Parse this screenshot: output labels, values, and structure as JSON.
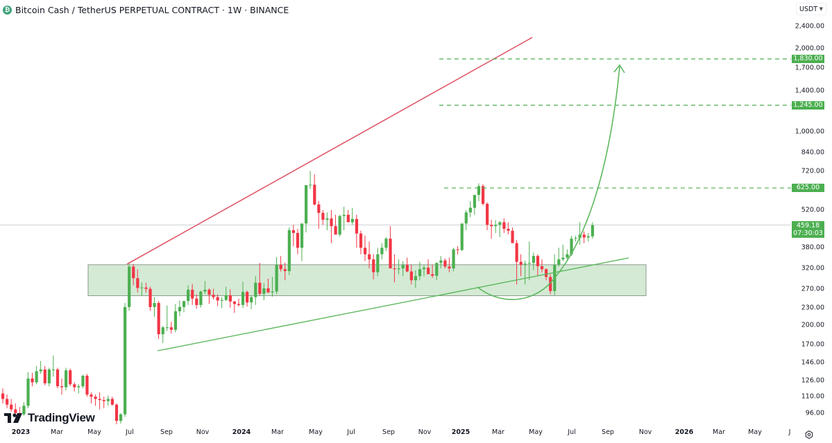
{
  "header": {
    "title": "Bitcoin Cash / TetherUS PERPETUAL CONTRACT · 1W · BINANCE",
    "symbol_icon": "bitcoin-cash-icon"
  },
  "price_axis": {
    "currency_button": "USDT",
    "currency_icon": "chevron-down-icon",
    "ticks": [
      "2,400.00",
      "2,000.00",
      "1,700.00",
      "1,400.00",
      "1,000.00",
      "840.00",
      "720.00",
      "520.00",
      "380.00",
      "320.00",
      "270.00",
      "230.00",
      "200.00",
      "170.00",
      "146.00",
      "126.00",
      "110.00",
      "96.00"
    ],
    "labels": [
      {
        "value": "1,830.00",
        "color": "#4caf50"
      },
      {
        "value": "1,245.00",
        "color": "#4caf50"
      },
      {
        "value": "625.00",
        "color": "#4caf50"
      },
      {
        "value": "459.18",
        "countdown": "07:30:03",
        "color": "#4caf50"
      }
    ]
  },
  "time_axis": {
    "ticks": [
      {
        "label": "2023",
        "year": true
      },
      {
        "label": "Mar"
      },
      {
        "label": "May"
      },
      {
        "label": "Jul"
      },
      {
        "label": "Sep"
      },
      {
        "label": "Nov"
      },
      {
        "label": "2024",
        "year": true
      },
      {
        "label": "Mar"
      },
      {
        "label": "May"
      },
      {
        "label": "Jul"
      },
      {
        "label": "Sep"
      },
      {
        "label": "Nov"
      },
      {
        "label": "2025",
        "year": true
      },
      {
        "label": "Mar"
      },
      {
        "label": "May"
      },
      {
        "label": "Jul"
      },
      {
        "label": "Sep"
      },
      {
        "label": "Nov"
      },
      {
        "label": "2026",
        "year": true
      },
      {
        "label": "Mar"
      },
      {
        "label": "May"
      },
      {
        "label": "J"
      }
    ],
    "settings_icon": "gear-icon"
  },
  "branding": {
    "logo_text": "TradingView",
    "logo_icon": "tradingview-logo-icon"
  },
  "colors": {
    "up": "#4caf50",
    "down": "#f23645",
    "resistance_line": "#e0596a",
    "support_line": "#5cb85c",
    "zone_fill": "#d4ead5",
    "zone_border": "#8a9a8c",
    "target_line": "#4caf50",
    "price_line": "#b2b5be"
  },
  "chart_data": {
    "type": "candlestick",
    "title": "Bitcoin Cash / TetherUS PERPETUAL CONTRACT · 1W · BINANCE",
    "xlabel": "",
    "ylabel": "USDT",
    "y_scale": "log",
    "ylim": [
      90,
      2600
    ],
    "x_range": [
      "2023-01",
      "2026-07"
    ],
    "current_price": 459.18,
    "bar_countdown": "07:30:03",
    "candles_ohlc": [
      [
        113,
        118,
        104,
        108
      ],
      [
        108,
        112,
        100,
        103
      ],
      [
        103,
        108,
        97,
        99
      ],
      [
        99,
        104,
        95,
        96
      ],
      [
        96,
        101,
        92,
        95
      ],
      [
        95,
        105,
        94,
        102
      ],
      [
        102,
        135,
        100,
        128
      ],
      [
        128,
        134,
        120,
        124
      ],
      [
        124,
        142,
        122,
        136
      ],
      [
        136,
        148,
        133,
        138
      ],
      [
        138,
        142,
        121,
        123
      ],
      [
        123,
        140,
        120,
        138
      ],
      [
        138,
        155,
        130,
        138
      ],
      [
        138,
        140,
        118,
        120
      ],
      [
        120,
        128,
        112,
        119
      ],
      [
        119,
        140,
        116,
        137
      ],
      [
        137,
        139,
        120,
        122
      ],
      [
        122,
        124,
        115,
        119
      ],
      [
        119,
        122,
        113,
        120
      ],
      [
        120,
        132,
        118,
        131
      ],
      [
        131,
        133,
        110,
        112
      ],
      [
        112,
        114,
        104,
        110
      ],
      [
        110,
        112,
        102,
        108
      ],
      [
        108,
        114,
        99,
        107
      ],
      [
        107,
        110,
        100,
        106
      ],
      [
        106,
        111,
        102,
        108
      ],
      [
        108,
        110,
        102,
        103
      ],
      [
        103,
        104,
        86,
        90
      ],
      [
        90,
        96,
        88,
        95
      ],
      [
        95,
        240,
        93,
        232
      ],
      [
        232,
        335,
        225,
        325
      ],
      [
        325,
        332,
        278,
        295
      ],
      [
        295,
        318,
        262,
        272
      ],
      [
        272,
        285,
        255,
        273
      ],
      [
        273,
        284,
        262,
        270
      ],
      [
        270,
        275,
        225,
        232
      ],
      [
        232,
        252,
        214,
        240
      ],
      [
        240,
        244,
        178,
        185
      ],
      [
        185,
        198,
        172,
        196
      ],
      [
        196,
        235,
        190,
        196
      ],
      [
        196,
        205,
        186,
        192
      ],
      [
        192,
        238,
        188,
        224
      ],
      [
        224,
        245,
        215,
        232
      ],
      [
        232,
        240,
        222,
        244
      ],
      [
        244,
        278,
        236,
        268
      ],
      [
        268,
        281,
        236,
        249
      ],
      [
        249,
        258,
        229,
        236
      ],
      [
        236,
        266,
        231,
        264
      ],
      [
        264,
        288,
        258,
        268
      ],
      [
        268,
        271,
        238,
        257
      ],
      [
        257,
        270,
        247,
        252
      ],
      [
        252,
        258,
        234,
        245
      ],
      [
        245,
        252,
        230,
        246
      ],
      [
        246,
        275,
        244,
        256
      ],
      [
        256,
        269,
        231,
        243
      ],
      [
        243,
        244,
        221,
        238
      ],
      [
        238,
        249,
        233,
        236
      ],
      [
        236,
        286,
        230,
        263
      ],
      [
        263,
        266,
        233,
        241
      ],
      [
        241,
        255,
        228,
        252
      ],
      [
        252,
        300,
        236,
        284
      ],
      [
        284,
        335,
        255,
        259
      ],
      [
        259,
        283,
        246,
        271
      ],
      [
        271,
        294,
        261,
        262
      ],
      [
        262,
        298,
        253,
        264
      ],
      [
        264,
        352,
        258,
        330
      ],
      [
        330,
        355,
        312,
        318
      ],
      [
        318,
        336,
        290,
        313
      ],
      [
        313,
        450,
        303,
        440
      ],
      [
        440,
        460,
        385,
        430
      ],
      [
        430,
        445,
        360,
        380
      ],
      [
        380,
        465,
        340,
        465
      ],
      [
        465,
        545,
        432,
        640
      ],
      [
        640,
        720,
        620,
        642
      ],
      [
        642,
        700,
        540,
        545
      ],
      [
        545,
        560,
        445,
        508
      ],
      [
        508,
        520,
        460,
        480
      ],
      [
        480,
        510,
        440,
        485
      ],
      [
        485,
        520,
        395,
        455
      ],
      [
        455,
        500,
        430,
        424
      ],
      [
        424,
        500,
        418,
        495
      ],
      [
        495,
        535,
        440,
        500
      ],
      [
        500,
        520,
        480,
        470
      ],
      [
        470,
        530,
        460,
        483
      ],
      [
        483,
        500,
        380,
        428
      ],
      [
        428,
        438,
        360,
        380
      ],
      [
        380,
        420,
        340,
        360
      ],
      [
        360,
        400,
        320,
        345
      ],
      [
        345,
        360,
        292,
        310
      ],
      [
        310,
        380,
        300,
        360
      ],
      [
        360,
        395,
        345,
        380
      ],
      [
        380,
        415,
        370,
        410
      ],
      [
        410,
        455,
        380,
        320
      ],
      [
        320,
        360,
        285,
        318
      ],
      [
        318,
        345,
        305,
        320
      ],
      [
        320,
        340,
        300,
        330
      ],
      [
        330,
        350,
        310,
        312
      ],
      [
        312,
        330,
        280,
        290
      ],
      [
        290,
        315,
        272,
        300
      ],
      [
        300,
        338,
        290,
        318
      ],
      [
        318,
        328,
        300,
        322
      ],
      [
        322,
        345,
        310,
        305
      ],
      [
        305,
        330,
        296,
        301
      ],
      [
        301,
        336,
        290,
        335
      ],
      [
        335,
        355,
        320,
        342
      ],
      [
        342,
        348,
        320,
        325
      ],
      [
        325,
        350,
        310,
        320
      ],
      [
        320,
        380,
        312,
        375
      ],
      [
        375,
        385,
        360,
        373
      ],
      [
        373,
        440,
        370,
        465
      ],
      [
        465,
        520,
        440,
        510
      ],
      [
        510,
        560,
        490,
        530
      ],
      [
        530,
        560,
        500,
        590
      ],
      [
        590,
        650,
        560,
        635
      ],
      [
        635,
        645,
        540,
        548
      ],
      [
        548,
        555,
        440,
        460
      ],
      [
        460,
        480,
        410,
        455
      ],
      [
        455,
        478,
        430,
        460
      ],
      [
        460,
        475,
        415,
        470
      ],
      [
        470,
        485,
        430,
        445
      ],
      [
        445,
        470,
        425,
        438
      ],
      [
        438,
        450,
        400,
        395
      ],
      [
        395,
        405,
        280,
        338
      ],
      [
        338,
        360,
        300,
        330
      ],
      [
        330,
        342,
        280,
        333
      ],
      [
        333,
        400,
        290,
        335
      ],
      [
        335,
        365,
        315,
        355
      ],
      [
        355,
        360,
        300,
        326
      ],
      [
        326,
        345,
        310,
        318
      ],
      [
        318,
        320,
        290,
        298
      ],
      [
        298,
        305,
        258,
        265
      ],
      [
        265,
        360,
        256,
        330
      ],
      [
        330,
        380,
        325,
        345
      ],
      [
        345,
        390,
        340,
        350
      ],
      [
        350,
        375,
        345,
        360
      ],
      [
        360,
        420,
        355,
        410
      ],
      [
        410,
        420,
        400,
        412
      ],
      [
        412,
        470,
        390,
        424
      ],
      [
        424,
        435,
        395,
        414
      ],
      [
        414,
        430,
        400,
        418
      ],
      [
        418,
        470,
        410,
        459
      ]
    ],
    "drawings": {
      "resistance_trendline": {
        "from": {
          "x_date": "2023-06-27",
          "price": 330
        },
        "to": {
          "x_date": "2025-11-15",
          "price": 2200
        },
        "color": "#e0596a"
      },
      "support_trendline": {
        "from": {
          "x_date": "2023-08-15",
          "price": 172
        },
        "to": {
          "x_date": "2025-09-20",
          "price": 345
        },
        "color": "#5cb85c"
      },
      "demand_zone": {
        "top": 330,
        "bottom": 255,
        "from": "2023-05-10",
        "to": "2025-10-10"
      },
      "targets": [
        1830,
        1245,
        625
      ],
      "projection_arrow": {
        "type": "curved",
        "low": 255,
        "target": 1830
      }
    }
  }
}
